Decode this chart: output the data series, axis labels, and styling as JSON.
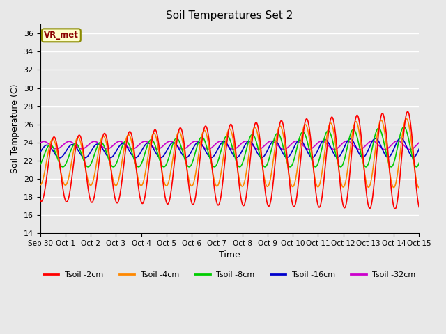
{
  "title": "Soil Temperatures Set 2",
  "xlabel": "Time",
  "ylabel": "Soil Temperature (C)",
  "ylim": [
    14,
    37
  ],
  "yticks": [
    14,
    16,
    18,
    20,
    22,
    24,
    26,
    28,
    30,
    32,
    34,
    36
  ],
  "plot_bg_color": "#e8e8e8",
  "grid_color": "#ffffff",
  "colors": {
    "2cm": "#ff0000",
    "4cm": "#ff8800",
    "8cm": "#00cc00",
    "16cm": "#0000cc",
    "32cm": "#cc00cc"
  },
  "legend_label": "VR_met",
  "legend_labels": [
    "Tsoil -2cm",
    "Tsoil -4cm",
    "Tsoil -8cm",
    "Tsoil -16cm",
    "Tsoil -32cm"
  ],
  "x_tick_labels": [
    "Sep 30",
    "Oct 1",
    "Oct 2",
    "Oct 3",
    "Oct 4",
    "Oct 5",
    "Oct 6",
    "Oct 7",
    "Oct 8",
    "Oct 9",
    "Oct 10",
    "Oct 11",
    "Oct 12",
    "Oct 13",
    "Oct 14",
    "Oct 15"
  ],
  "n_days": 15,
  "pts_per_day": 48
}
